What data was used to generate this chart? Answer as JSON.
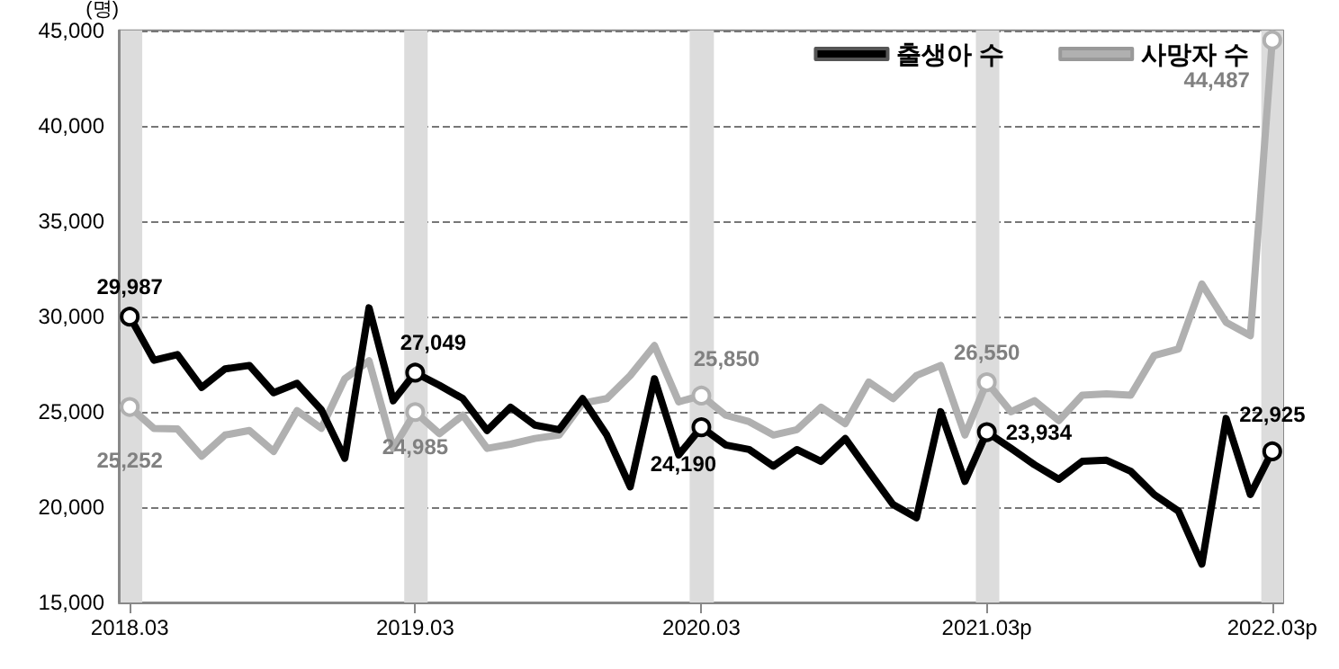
{
  "chart_data": {
    "type": "line",
    "ylabel": "(명)",
    "x": [
      "2018-03",
      "2018-04",
      "2018-05",
      "2018-06",
      "2018-07",
      "2018-08",
      "2018-09",
      "2018-10",
      "2018-11",
      "2018-12",
      "2019-01",
      "2019-02",
      "2019-03",
      "2019-04",
      "2019-05",
      "2019-06",
      "2019-07",
      "2019-08",
      "2019-09",
      "2019-10",
      "2019-11",
      "2019-12",
      "2020-01",
      "2020-02",
      "2020-03",
      "2020-04",
      "2020-05",
      "2020-06",
      "2020-07",
      "2020-08",
      "2020-09",
      "2020-10",
      "2020-11",
      "2020-12",
      "2021-01",
      "2021-02",
      "2021-03",
      "2021-04",
      "2021-05",
      "2021-06",
      "2021-07",
      "2021-08",
      "2021-09",
      "2021-10",
      "2021-11",
      "2021-12",
      "2022-01",
      "2022-02",
      "2022-03"
    ],
    "series": [
      {
        "name": "출생아 수",
        "color": "#000000",
        "values": [
          29987,
          27700,
          28000,
          26280,
          27250,
          27430,
          26000,
          26490,
          25100,
          22560,
          30450,
          25580,
          27049,
          26390,
          25690,
          24020,
          25240,
          24300,
          24060,
          25690,
          23780,
          21070,
          26730,
          22740,
          24190,
          23260,
          23020,
          22150,
          23020,
          22400,
          23600,
          21880,
          20140,
          19440,
          25000,
          21350,
          23934,
          23080,
          22220,
          21460,
          22400,
          22460,
          21880,
          20660,
          19790,
          17010,
          24650,
          20660,
          22925
        ],
        "value_labels": [
          "29,987",
          null,
          null,
          null,
          null,
          null,
          null,
          null,
          null,
          null,
          null,
          null,
          "27,049",
          null,
          null,
          null,
          null,
          null,
          null,
          null,
          null,
          null,
          null,
          null,
          "24,190",
          null,
          null,
          null,
          null,
          null,
          null,
          null,
          null,
          null,
          null,
          null,
          "23,934",
          null,
          null,
          null,
          null,
          null,
          null,
          null,
          null,
          null,
          null,
          null,
          "22,925"
        ]
      },
      {
        "name": "사망자 수",
        "color": "#b0b0b0",
        "values": [
          25252,
          24130,
          24100,
          22670,
          23780,
          24020,
          22920,
          25060,
          24130,
          26730,
          27670,
          23080,
          24985,
          23850,
          24820,
          23080,
          23300,
          23600,
          23780,
          25450,
          25690,
          26900,
          28470,
          25520,
          25850,
          24820,
          24480,
          23780,
          24060,
          25240,
          24380,
          26560,
          25690,
          26900,
          27430,
          23780,
          26550,
          25000,
          25580,
          24540,
          25870,
          25940,
          25870,
          27950,
          28290,
          31700,
          29690,
          28990,
          44487
        ],
        "value_labels": [
          "25,252",
          null,
          null,
          null,
          null,
          null,
          null,
          null,
          null,
          null,
          null,
          null,
          "24,985",
          null,
          null,
          null,
          null,
          null,
          null,
          null,
          null,
          null,
          null,
          null,
          "25,850",
          null,
          null,
          null,
          null,
          null,
          null,
          null,
          null,
          null,
          null,
          null,
          "26,550",
          null,
          null,
          null,
          null,
          null,
          null,
          null,
          null,
          null,
          null,
          null,
          "44,487"
        ]
      }
    ],
    "xlim": [
      "2018-02-15",
      "2022-03-15"
    ],
    "xticks": [
      {
        "value": "2018-03",
        "label": "2018.03"
      },
      {
        "value": "2019-03",
        "label": "2019.03"
      },
      {
        "value": "2020-03",
        "label": "2020.03"
      },
      {
        "value": "2021-03",
        "label": "2021.03p"
      },
      {
        "value": "2022-03",
        "label": "2022.03p"
      }
    ],
    "ylim": [
      15000,
      45000
    ],
    "yticks": [
      {
        "value": 15000,
        "label": "15,000"
      },
      {
        "value": 20000,
        "label": "20,000"
      },
      {
        "value": 25000,
        "label": "25,000"
      },
      {
        "value": 30000,
        "label": "30,000"
      },
      {
        "value": 35000,
        "label": "35,000"
      },
      {
        "value": 40000,
        "label": "40,000"
      },
      {
        "value": 45000,
        "label": "45,000"
      }
    ],
    "bands": [
      {
        "axis": "x",
        "from": "2018-02-15",
        "to": "2018-03-17",
        "color": "#dcdcdc"
      },
      {
        "axis": "x",
        "from": "2019-02-15",
        "to": "2019-03-17",
        "color": "#dcdcdc"
      },
      {
        "axis": "x",
        "from": "2020-02-15",
        "to": "2020-03-17",
        "color": "#dcdcdc"
      },
      {
        "axis": "x",
        "from": "2021-02-15",
        "to": "2021-03-17",
        "color": "#dcdcdc"
      },
      {
        "axis": "x",
        "from": "2022-02-15",
        "to": "2022-03-15",
        "color": "#dcdcdc"
      }
    ],
    "grid": "y",
    "legend": "top right",
    "line_style": "solid"
  }
}
